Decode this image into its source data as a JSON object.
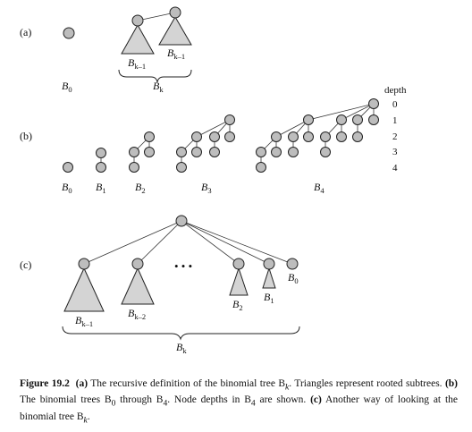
{
  "parts": {
    "a": "(a)",
    "b": "(b)",
    "c": "(c)"
  },
  "trees": {
    "B0": {
      "base": "B",
      "sub": "0"
    },
    "B1": {
      "base": "B",
      "sub": "1"
    },
    "B2": {
      "base": "B",
      "sub": "2"
    },
    "B3": {
      "base": "B",
      "sub": "3"
    },
    "B4": {
      "base": "B",
      "sub": "4"
    },
    "Bk": {
      "base": "B",
      "sub": "k"
    },
    "Bk1": {
      "base": "B",
      "sub": "k–1"
    },
    "Bk2": {
      "base": "B",
      "sub": "k–2"
    }
  },
  "depth": {
    "header": "depth",
    "levels": [
      "0",
      "1",
      "2",
      "3",
      "4"
    ]
  },
  "ellipsis": "• • •",
  "caption": {
    "figure": "Figure 19.2",
    "a_tag": "(a)",
    "a_text": " The recursive definition of the binomial tree B",
    "a_sub": "k",
    "a_text2": ". Triangles represent rooted subtrees. ",
    "b_tag": "(b)",
    "b_text": " The binomial trees B",
    "b_sub0": "0",
    "b_text2": " through B",
    "b_sub4": "4",
    "b_text3": ". Node depths in B",
    "b_sub4b": "4",
    "b_text4": " are shown. ",
    "c_tag": "(c)",
    "c_text": " Another way of looking at the binomial tree B",
    "c_sub": "k",
    "c_text2": "."
  }
}
